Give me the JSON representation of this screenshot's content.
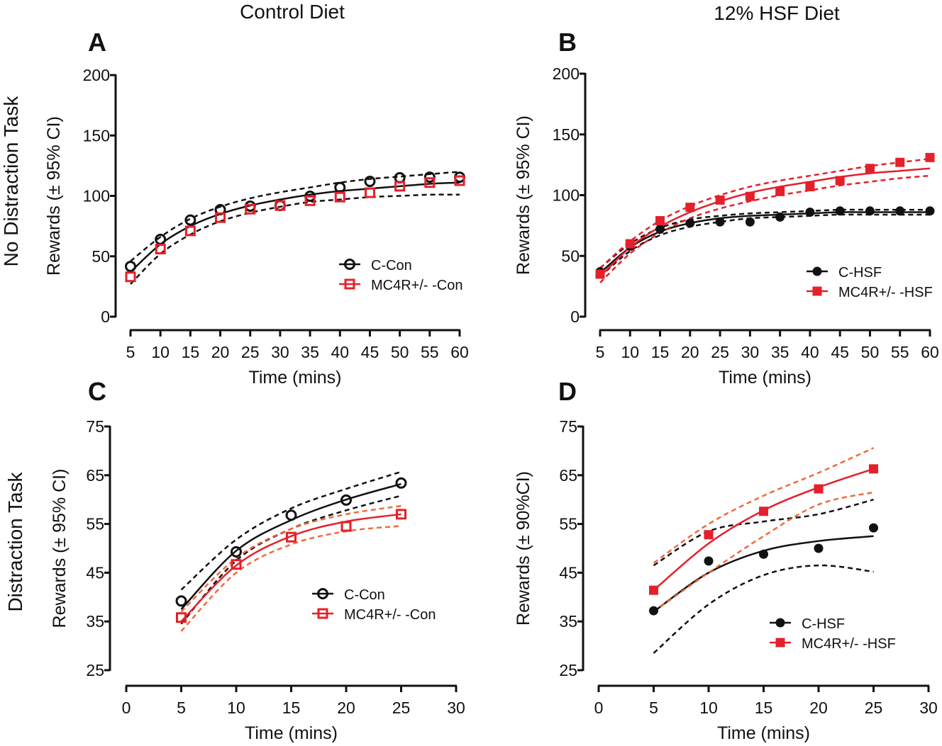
{
  "column_titles": [
    "Control Diet",
    "12% HSF Diet"
  ],
  "row_titles": [
    "No Distraction Task",
    "Distraction Task"
  ],
  "colors": {
    "black": "#111111",
    "red": "#e5202a",
    "orange_ci": "#ef6a3c"
  },
  "chart_data": [
    {
      "panel": "A",
      "type": "line",
      "xlabel": "Time (mins)",
      "ylabel": "Rewards (± 95% CI)",
      "xlim": [
        5,
        60
      ],
      "ylim": [
        0,
        200
      ],
      "xticks": [
        5,
        10,
        15,
        20,
        25,
        30,
        35,
        40,
        45,
        50,
        55,
        60
      ],
      "yticks": [
        0,
        50,
        100,
        150,
        200
      ],
      "legend_placement": "bottom-right",
      "x": [
        5,
        10,
        15,
        20,
        25,
        30,
        35,
        40,
        45,
        50,
        55,
        60
      ],
      "series": [
        {
          "name": "C-Con",
          "marker": "open-circle",
          "color": "#111111",
          "values": [
            41.6,
            64,
            80,
            88.6,
            91.5,
            92,
            99.7,
            107,
            112,
            115,
            115.5,
            115.5
          ]
        },
        {
          "name": "MC4R+/- -Con",
          "marker": "open-square",
          "color": "#e5202a",
          "values": [
            33,
            56,
            71,
            82,
            89,
            92,
            96,
            99,
            102.6,
            108,
            111,
            112.6
          ]
        }
      ],
      "fits": [
        {
          "color": "#111111",
          "ci_color": "#111111",
          "fit": [
            37,
            60,
            75,
            85,
            92,
            97,
            101,
            104,
            106,
            108,
            110,
            111
          ],
          "upper": [
            46,
            66,
            81,
            91,
            98,
            103,
            107,
            111,
            114,
            116,
            118,
            120
          ],
          "lower": [
            27,
            52,
            68,
            79,
            86,
            91,
            95,
            97,
            99,
            100,
            101,
            101
          ]
        }
      ]
    },
    {
      "panel": "B",
      "type": "line",
      "xlabel": "Time (mins)",
      "ylabel": "Rewards (± 95% CI)",
      "xlim": [
        5,
        60
      ],
      "ylim": [
        0,
        200
      ],
      "xticks": [
        5,
        10,
        15,
        20,
        25,
        30,
        35,
        40,
        45,
        50,
        55,
        60
      ],
      "yticks": [
        0,
        50,
        100,
        150,
        200
      ],
      "legend_placement": "bottom-right",
      "x": [
        5,
        10,
        15,
        20,
        25,
        30,
        35,
        40,
        45,
        50,
        55,
        60
      ],
      "series": [
        {
          "name": "C-HSF",
          "marker": "filled-circle",
          "color": "#111111",
          "values": [
            37,
            58,
            72,
            77,
            78,
            78,
            82,
            86,
            87,
            87,
            87,
            87
          ]
        },
        {
          "name": "MC4R+/- -HSF",
          "marker": "filled-square",
          "color": "#e5202a",
          "values": [
            35,
            60,
            79,
            90,
            96,
            99,
            103,
            107,
            112,
            122,
            127,
            131
          ]
        }
      ],
      "fits": [
        {
          "color": "#111111",
          "ci_color": "#111111",
          "fit": [
            36,
            57,
            70,
            77,
            81,
            83,
            84,
            85,
            86,
            86,
            86,
            86
          ],
          "upper": [
            40,
            60,
            73,
            80,
            83,
            85,
            86,
            87,
            88,
            88,
            88,
            88
          ],
          "lower": [
            33,
            54,
            67,
            74,
            78,
            81,
            82,
            83,
            84,
            84,
            84,
            84
          ]
        },
        {
          "color": "#e5202a",
          "ci_color": "#e5202a",
          "fit": [
            33,
            57,
            74,
            86,
            95,
            102,
            107,
            111,
            115,
            118,
            120,
            122
          ],
          "upper": [
            40,
            62,
            79,
            91,
            100,
            107,
            112,
            116,
            120,
            124,
            127,
            130
          ],
          "lower": [
            28,
            52,
            69,
            81,
            89,
            95,
            100,
            104,
            108,
            111,
            114,
            116
          ]
        }
      ]
    },
    {
      "panel": "C",
      "type": "line",
      "xlabel": "Time (mins)",
      "ylabel": "Rewards (± 95% CI)",
      "xlim": [
        0,
        30
      ],
      "ylim": [
        25,
        75
      ],
      "xticks": [
        0,
        5,
        10,
        15,
        20,
        25,
        30
      ],
      "yticks": [
        25,
        35,
        45,
        55,
        65,
        75
      ],
      "legend_placement": "bottom-right",
      "x": [
        5,
        10,
        15,
        20,
        25
      ],
      "series": [
        {
          "name": "C-Con",
          "marker": "open-circle",
          "color": "#111111",
          "values": [
            39.2,
            49.3,
            56.8,
            59.9,
            63.4
          ]
        },
        {
          "name": "MC4R+/- -Con",
          "marker": "open-square",
          "color": "#e5202a",
          "values": [
            35.8,
            46.7,
            52.3,
            54.5,
            57
          ]
        }
      ],
      "fits": [
        {
          "color": "#111111",
          "ci_color": "#111111",
          "fit": [
            37.5,
            49.5,
            55.8,
            60,
            63.2
          ],
          "upper": [
            41.5,
            51.8,
            58.2,
            62.2,
            65.7
          ],
          "lower": [
            34.5,
            47.5,
            54,
            57.8,
            60.8
          ]
        },
        {
          "color": "#e5202a",
          "ci_color": "#ef6a3c",
          "fit": [
            35,
            46.5,
            52.5,
            55.5,
            57
          ],
          "upper": [
            37,
            48,
            54,
            57,
            58.7
          ],
          "lower": [
            33,
            45,
            50.8,
            53.5,
            54.6
          ]
        }
      ]
    },
    {
      "panel": "D",
      "type": "line",
      "xlabel": "Time (mins)",
      "ylabel": "Rewards (± 90%CI)",
      "xlim": [
        0,
        30
      ],
      "ylim": [
        25,
        75
      ],
      "xticks": [
        0,
        5,
        10,
        15,
        20,
        25,
        30
      ],
      "yticks": [
        25,
        35,
        45,
        55,
        65,
        75
      ],
      "legend_placement": "bottom-right",
      "x": [
        5,
        10,
        15,
        20,
        25
      ],
      "series": [
        {
          "name": "C-HSF",
          "marker": "filled-circle",
          "color": "#111111",
          "values": [
            37.2,
            47.4,
            48.8,
            50,
            54.2
          ]
        },
        {
          "name": "MC4R+/- -HSF",
          "marker": "filled-square",
          "color": "#e5202a",
          "values": [
            41.4,
            52.8,
            57.6,
            62.2,
            66.3
          ]
        }
      ],
      "fits": [
        {
          "color": "#111111",
          "ci_color": "#111111",
          "fit": [
            37,
            45,
            49.5,
            51.5,
            52.5
          ],
          "upper": [
            46.5,
            53.5,
            55.5,
            57,
            60
          ],
          "lower": [
            28.5,
            38.5,
            44.5,
            46.5,
            45.2
          ]
        },
        {
          "color": "#e5202a",
          "ci_color": "#ef6a3c",
          "fit": [
            41.4,
            51,
            57.8,
            62.5,
            66.3
          ],
          "upper": [
            47,
            55,
            60.8,
            65.5,
            70.6
          ],
          "lower": [
            37,
            45,
            52.5,
            59,
            61.5
          ]
        }
      ]
    }
  ]
}
